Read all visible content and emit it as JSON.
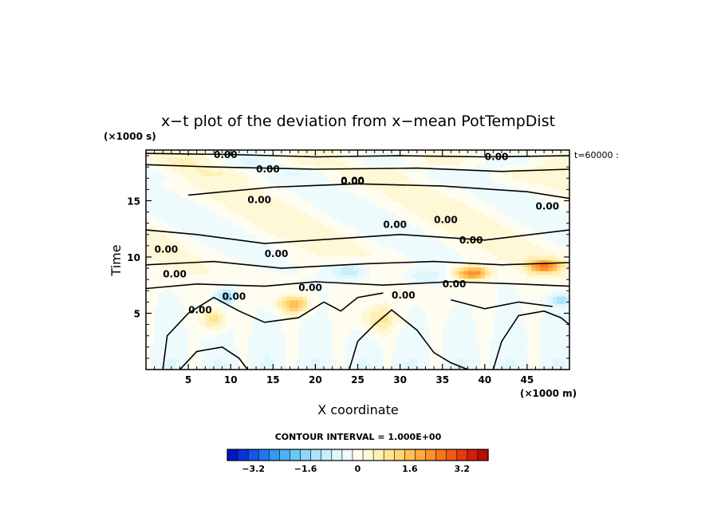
{
  "chart_data": {
    "type": "heatmap",
    "title": "x−t plot of the deviation from x−mean PotTempDist",
    "xlabel": "X coordinate",
    "ylabel": "Time",
    "x_unit": "(×1000 m)",
    "y_unit": "(×1000 s)",
    "time_label": "t=60000 :",
    "xlim": [
      0,
      50
    ],
    "ylim": [
      0,
      19.5
    ],
    "x_ticks": [
      "5",
      "10",
      "15",
      "20",
      "25",
      "30",
      "35",
      "40",
      "45"
    ],
    "y_ticks": [
      "5",
      "10",
      "15"
    ],
    "contour_interval": "CONTOUR INTERVAL = 1.000E+00",
    "contour_label": "0.00",
    "colorbar": {
      "ticks": [
        "−3.2",
        "−1.6",
        "0",
        "1.6",
        "3.2"
      ],
      "range": [
        -4.0,
        4.0
      ],
      "colors": [
        "#0016c8",
        "#0a34db",
        "#1356ea",
        "#2277f2",
        "#3399f5",
        "#4cb1f7",
        "#6bc6f8",
        "#8dd6f9",
        "#abe3fa",
        "#c6eefb",
        "#def6fc",
        "#eefbfd",
        "#fffdef",
        "#fff8d6",
        "#fff0b5",
        "#ffe493",
        "#ffd474",
        "#ffc058",
        "#ffaa40",
        "#fd912c",
        "#f7761c",
        "#ef5a12",
        "#e33b0a",
        "#d11f05",
        "#b90d02"
      ]
    },
    "grid": false
  }
}
